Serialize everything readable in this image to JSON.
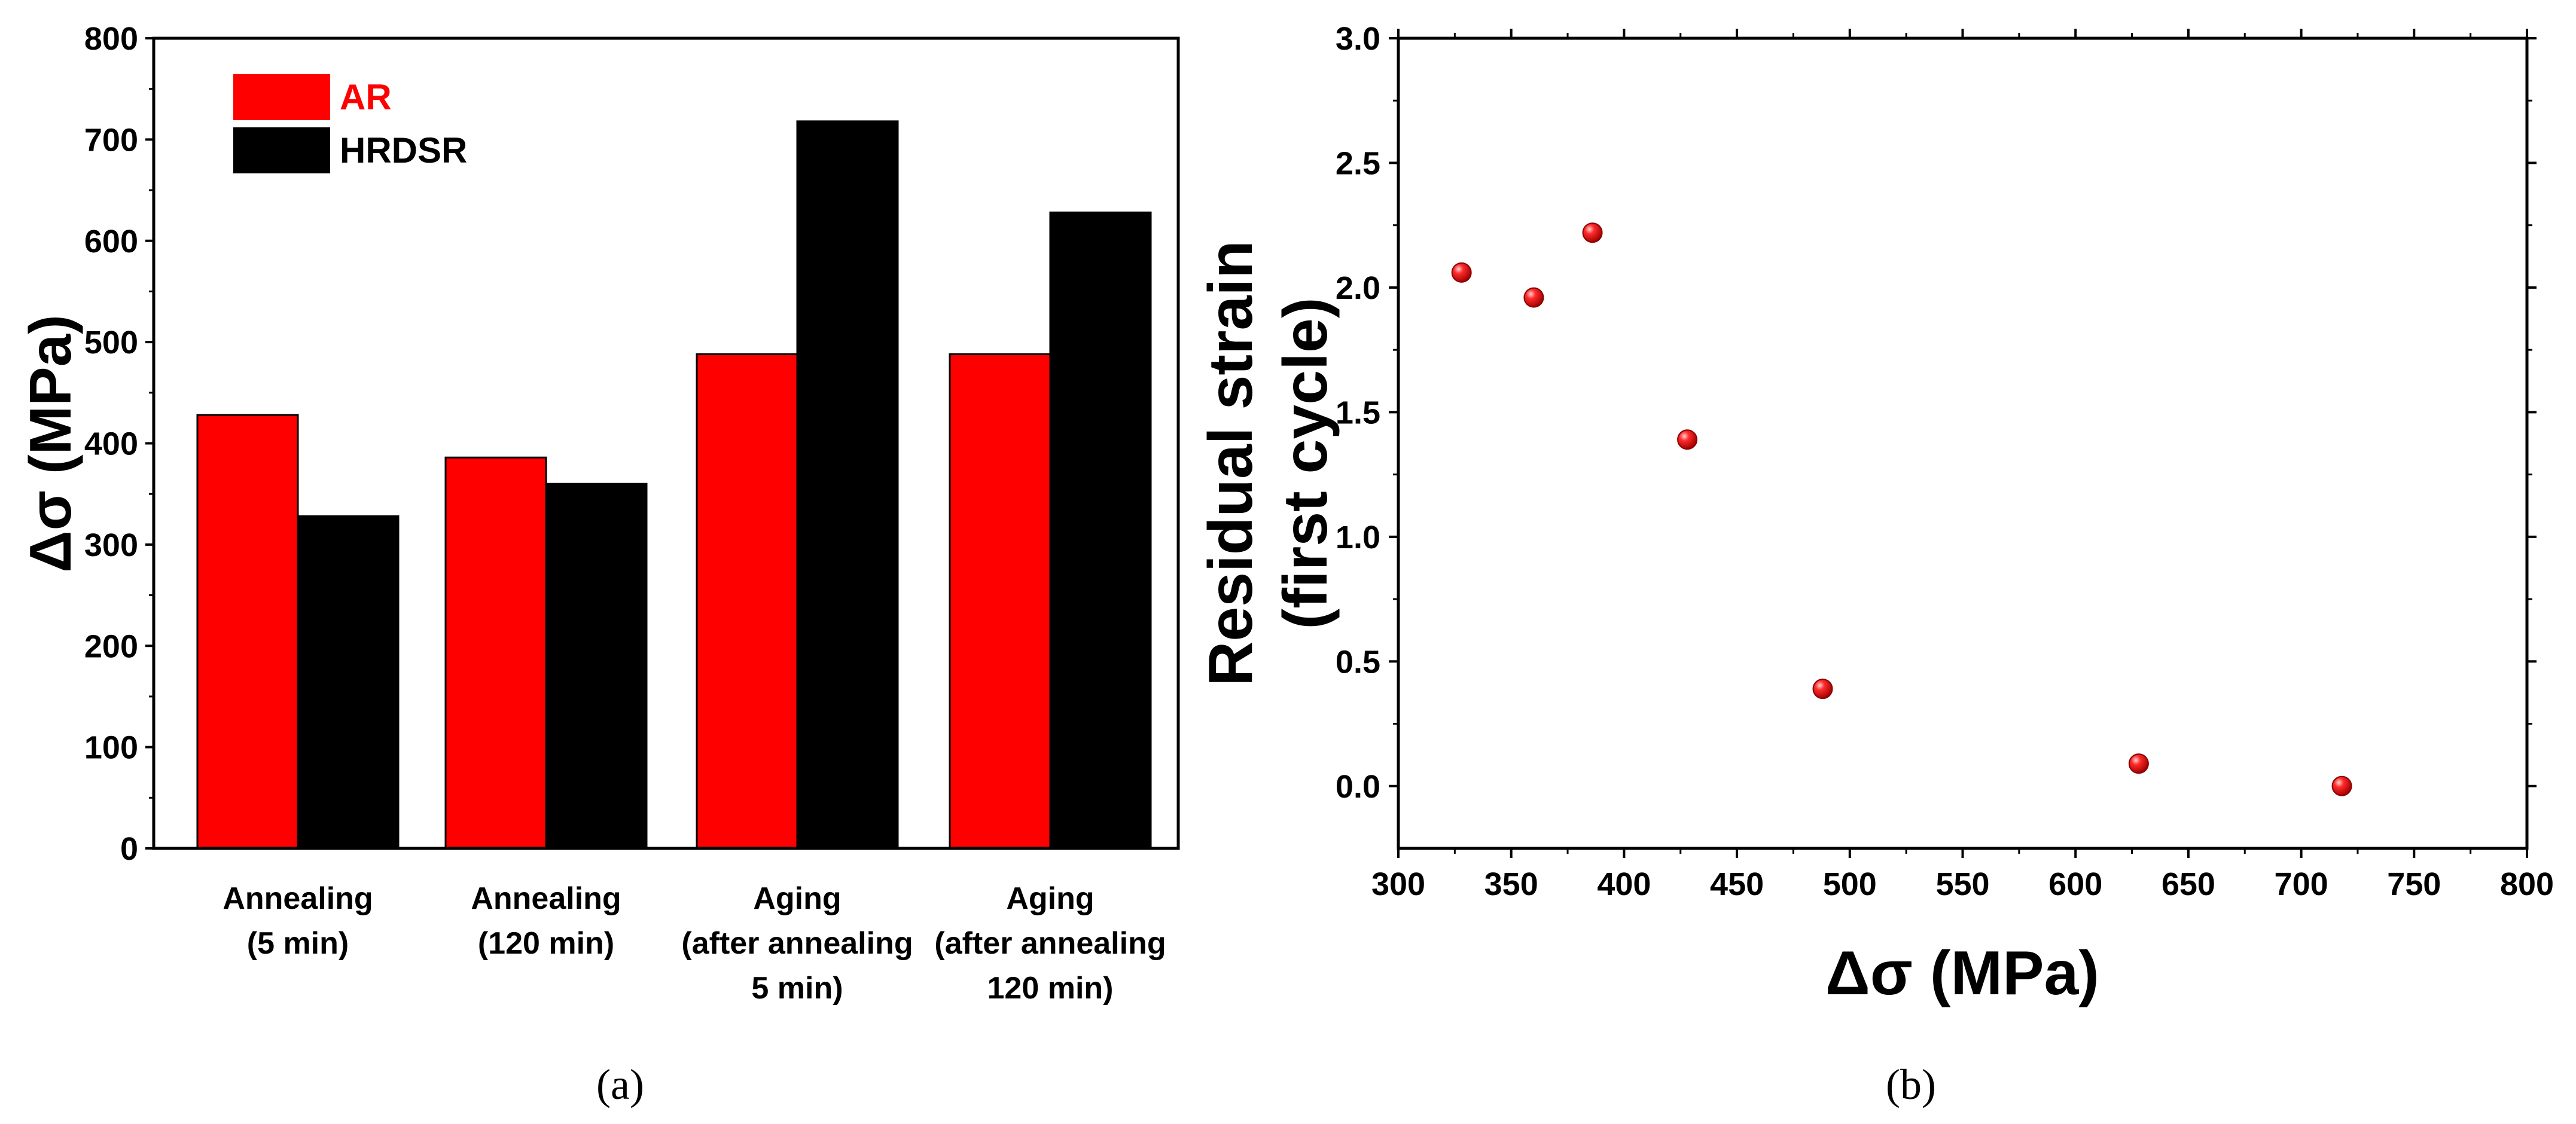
{
  "chart_data": [
    {
      "type": "bar",
      "panel_label": "(a)",
      "ylabel": "Δσ (MPa)",
      "ylim": [
        0,
        800
      ],
      "yticks": [
        0,
        100,
        200,
        300,
        400,
        500,
        600,
        700,
        800
      ],
      "categories": [
        [
          "Annealing",
          "(5 min)"
        ],
        [
          "Annealing",
          "(120 min)"
        ],
        [
          "Aging",
          "(after annealing",
          "5 min)"
        ],
        [
          "Aging",
          "(after annealing",
          "120 min)"
        ]
      ],
      "series": [
        {
          "name": "AR",
          "color": "#ff0000",
          "values": [
            428,
            386,
            488,
            488
          ]
        },
        {
          "name": "HRDSR",
          "color": "#000000",
          "values": [
            328,
            360,
            718,
            628
          ]
        }
      ],
      "legend_position": "top-left",
      "legend_label_colors": [
        "#ff0000",
        "#000000"
      ]
    },
    {
      "type": "scatter",
      "panel_label": "(b)",
      "xlabel": "Δσ (MPa)",
      "ylabel_lines": [
        "Residual strain",
        "(first cycle)"
      ],
      "xlim": [
        300,
        800
      ],
      "ylim": [
        -0.25,
        3.0
      ],
      "xticks": [
        300,
        350,
        400,
        450,
        500,
        550,
        600,
        650,
        700,
        750,
        800
      ],
      "yticks": [
        "0.0",
        "0.5",
        "1.0",
        "1.5",
        "2.0",
        "2.5",
        "3.0"
      ],
      "marker_color": "#ff0000",
      "points": [
        {
          "x": 328,
          "y": 2.06
        },
        {
          "x": 360,
          "y": 1.96
        },
        {
          "x": 386,
          "y": 2.22
        },
        {
          "x": 428,
          "y": 1.39
        },
        {
          "x": 488,
          "y": 0.39
        },
        {
          "x": 628,
          "y": 0.09
        },
        {
          "x": 718,
          "y": 0.0
        }
      ]
    }
  ]
}
